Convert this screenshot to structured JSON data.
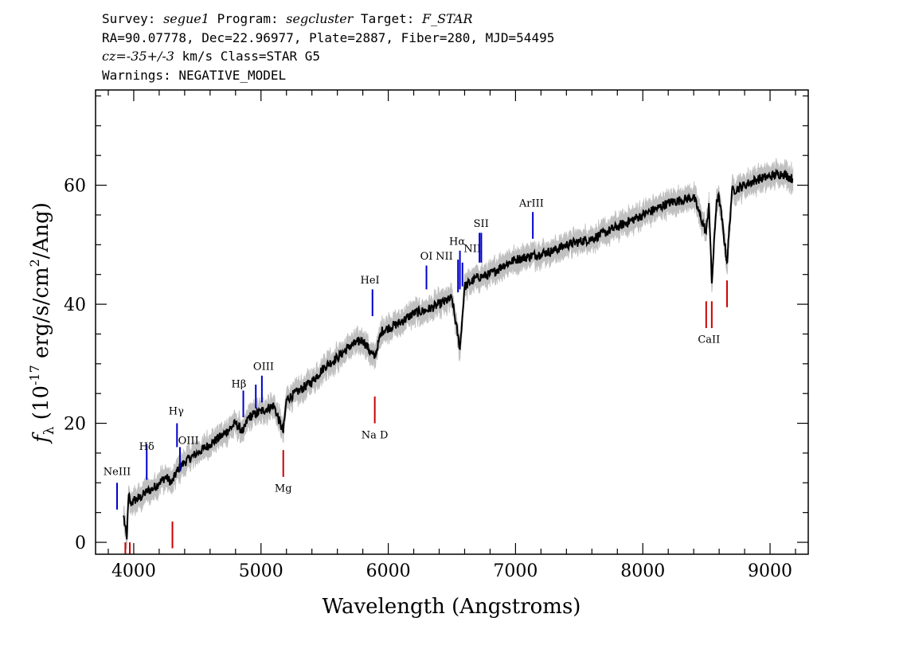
{
  "header": {
    "survey_label": "Survey: ",
    "survey": "segue1",
    "program_label": " Program: ",
    "program": "segcluster",
    "target_label": " Target: ",
    "target": "F_STAR",
    "line2": "RA=90.07778, Dec=22.96977, Plate=2887, Fiber=280, MJD=54495",
    "cz_label": "cz",
    "cz_value": "=-35+/-3",
    "cz_unit": " km/s Class=STAR G5",
    "line4": "Warnings: NEGATIVE_MODEL"
  },
  "chart_data": {
    "type": "line",
    "xlabel": "Wavelength (Angstroms)",
    "ylabel_sym": "f",
    "ylabel_sub": "λ",
    "ylabel_pre": " (10",
    "ylabel_exp": "-17",
    "ylabel_mid": " erg/s/cm",
    "ylabel_exp2": "2",
    "ylabel_post": "/Ang)",
    "xlim": [
      3700,
      9300
    ],
    "ylim": [
      -2,
      76
    ],
    "xticks": [
      4000,
      5000,
      6000,
      7000,
      8000,
      9000
    ],
    "yticks": [
      0,
      20,
      40,
      60
    ],
    "x_minor_step": 200,
    "y_minor_step": 5,
    "series": [
      {
        "role": "flux",
        "color": "#000000",
        "x": [
          3920,
          3945,
          3960,
          3975,
          4000,
          4050,
          4100,
          4150,
          4200,
          4250,
          4300,
          4340,
          4400,
          4500,
          4600,
          4700,
          4800,
          4861,
          4900,
          5000,
          5100,
          5175,
          5200,
          5300,
          5400,
          5500,
          5600,
          5700,
          5800,
          5890,
          5950,
          6000,
          6100,
          6200,
          6300,
          6400,
          6500,
          6563,
          6600,
          6700,
          6800,
          6900,
          7000,
          7100,
          7200,
          7300,
          7400,
          7500,
          7600,
          7700,
          7800,
          7900,
          8000,
          8100,
          8200,
          8300,
          8400,
          8498,
          8520,
          8542,
          8580,
          8600,
          8662,
          8700,
          8800,
          8900,
          9000,
          9100,
          9180
        ],
        "y": [
          4.5,
          0.5,
          8.0,
          6.5,
          7.0,
          7.5,
          8.5,
          9.0,
          10.0,
          11.0,
          10.0,
          12.0,
          13.5,
          15.0,
          16.5,
          18.0,
          20.0,
          18.5,
          21.0,
          22.0,
          23.0,
          18.5,
          24.0,
          25.5,
          27.0,
          29.5,
          31.0,
          33.0,
          34.0,
          31.0,
          35.5,
          36.0,
          37.0,
          38.5,
          39.0,
          40.0,
          41.0,
          32.5,
          43.0,
          44.5,
          45.0,
          46.5,
          47.5,
          48.0,
          48.5,
          49.0,
          50.0,
          50.5,
          51.0,
          52.0,
          53.0,
          54.0,
          55.0,
          56.0,
          57.0,
          57.5,
          58.0,
          52.0,
          57.0,
          43.5,
          57.5,
          58.0,
          47.0,
          59.0,
          60.0,
          61.0,
          61.5,
          62.0,
          61.0
        ]
      },
      {
        "role": "error band",
        "color": "#c0c0c0",
        "width": 1.6
      }
    ],
    "emission_lines": [
      {
        "label": "NeIII",
        "x": 3869,
        "y0": 5.5,
        "y1": 10.0,
        "color": "#0000cc",
        "tx": 3869,
        "ty": 11.3
      },
      {
        "label": "Hδ",
        "x": 4102,
        "y0": 10.5,
        "y1": 16.5,
        "color": "#0000cc",
        "tx": 4102,
        "ty": 15.5
      },
      {
        "label": "Hγ",
        "x": 4340,
        "y0": 16.0,
        "y1": 20.0,
        "color": "#0000cc",
        "tx": 4334,
        "ty": 21.5
      },
      {
        "label": "OIII",
        "x": 4363,
        "y0": 12.0,
        "y1": 16.0,
        "color": "#0000cc",
        "tx": 4430,
        "ty": 16.5
      },
      {
        "label": "Hβ",
        "x": 4861,
        "y0": 21.0,
        "y1": 25.5,
        "color": "#0000cc",
        "tx": 4826,
        "ty": 26.0
      },
      {
        "label": "",
        "x": 4959,
        "y0": 22.5,
        "y1": 26.5,
        "color": "#0000cc"
      },
      {
        "label": "OIII",
        "x": 5007,
        "y0": 23.5,
        "y1": 28.0,
        "color": "#0000cc",
        "tx": 5020,
        "ty": 29.0
      },
      {
        "label": "HeI",
        "x": 5876,
        "y0": 38.0,
        "y1": 42.5,
        "color": "#0000cc",
        "tx": 5856,
        "ty": 43.5
      },
      {
        "label": "OI",
        "x": 6300,
        "y0": 42.5,
        "y1": 46.5,
        "color": "#0000cc",
        "tx": 6300,
        "ty": 47.5
      },
      {
        "label": "NII",
        "x": 6548,
        "y0": 42.0,
        "y1": 47.5,
        "color": "#0000cc",
        "tx": 6440,
        "ty": 47.5
      },
      {
        "label": "Hα",
        "x": 6563,
        "y0": 42.5,
        "y1": 49.0,
        "color": "#0000cc",
        "tx": 6541,
        "ty": 50.0
      },
      {
        "label": "NII",
        "x": 6583,
        "y0": 43.0,
        "y1": 47.0,
        "color": "#0000cc",
        "tx": 6661,
        "ty": 48.8
      },
      {
        "label": "SII",
        "x": 6717,
        "y0": 47.0,
        "y1": 52.0,
        "color": "#0000cc",
        "tx": 6730,
        "ty": 53.0
      },
      {
        "label": "",
        "x": 6731,
        "y0": 47.0,
        "y1": 52.0,
        "color": "#0000cc"
      },
      {
        "label": "ArIII",
        "x": 7136,
        "y0": 51.0,
        "y1": 55.5,
        "color": "#0000cc",
        "tx": 7125,
        "ty": 56.4
      }
    ],
    "absorption_lines": [
      {
        "label": "",
        "x": 3934,
        "y0": -2.0,
        "y1": 0.0,
        "color": "#cc0000"
      },
      {
        "label": "",
        "x": 3969,
        "y0": -2.0,
        "y1": 0.0,
        "color": "#cc0000"
      },
      {
        "label": "",
        "x": 4304,
        "y0": -1.0,
        "y1": 3.5,
        "color": "#cc0000"
      },
      {
        "label": "Mg",
        "x": 5175,
        "y0": 11.0,
        "y1": 15.5,
        "color": "#cc0000",
        "tx": 5175,
        "ty": 8.5
      },
      {
        "label": "Na D",
        "x": 5894,
        "y0": 20.0,
        "y1": 24.5,
        "color": "#cc0000",
        "tx": 5894,
        "ty": 17.5
      },
      {
        "label": "",
        "x": 8498,
        "y0": 36.0,
        "y1": 40.5,
        "color": "#cc0000"
      },
      {
        "label": "CaII",
        "x": 8542,
        "y0": 36.0,
        "y1": 40.5,
        "color": "#cc0000",
        "tx": 8520,
        "ty": 33.5
      },
      {
        "label": "",
        "x": 8662,
        "y0": 39.5,
        "y1": 44.0,
        "color": "#cc0000"
      }
    ]
  }
}
